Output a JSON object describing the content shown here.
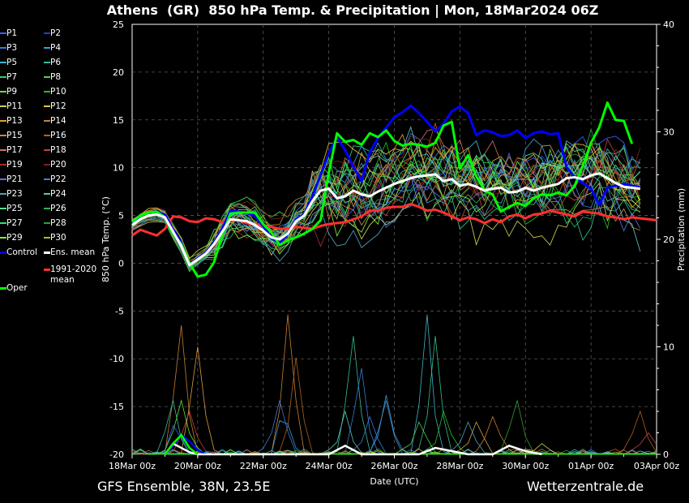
{
  "title": "Athens  (GR)  850 hPa Temp. & Precipitation | Mon, 18Mar2024 06Z",
  "footer": {
    "model": "GFS Ensemble, 38N, 23.5E",
    "source": "Wetterzentrale.de"
  },
  "legend": [
    {
      "label": "P1",
      "color": "#4060ff",
      "thick": false
    },
    {
      "label": "P2",
      "color": "#2040c0",
      "thick": false
    },
    {
      "label": "P3",
      "color": "#3c78d8",
      "thick": false
    },
    {
      "label": "P4",
      "color": "#3c9ad8",
      "thick": false
    },
    {
      "label": "P5",
      "color": "#40b4c8",
      "thick": false
    },
    {
      "label": "P6",
      "color": "#30c090",
      "thick": false
    },
    {
      "label": "P7",
      "color": "#30d070",
      "thick": false
    },
    {
      "label": "P8",
      "color": "#50d050",
      "thick": false
    },
    {
      "label": "P9",
      "color": "#60e040",
      "thick": false
    },
    {
      "label": "P10",
      "color": "#20c020",
      "thick": false
    },
    {
      "label": "P11",
      "color": "#d0d050",
      "thick": false
    },
    {
      "label": "P12",
      "color": "#e0c040",
      "thick": false
    },
    {
      "label": "P13",
      "color": "#d8a040",
      "thick": false
    },
    {
      "label": "P14",
      "color": "#c88030",
      "thick": false
    },
    {
      "label": "P15",
      "color": "#d08050",
      "thick": false
    },
    {
      "label": "P16",
      "color": "#b06020",
      "thick": false
    },
    {
      "label": "P17",
      "color": "#d07060",
      "thick": false
    },
    {
      "label": "P18",
      "color": "#c04040",
      "thick": false
    },
    {
      "label": "P19",
      "color": "#a03020",
      "thick": false
    },
    {
      "label": "P20",
      "color": "#802020",
      "thick": false
    },
    {
      "label": "P21",
      "color": "#6070e0",
      "thick": false
    },
    {
      "label": "P22",
      "color": "#4080c0",
      "thick": false
    },
    {
      "label": "P23",
      "color": "#50a0c0",
      "thick": false
    },
    {
      "label": "P24",
      "color": "#60c0c0",
      "thick": false
    },
    {
      "label": "P25",
      "color": "#50e090",
      "thick": false
    },
    {
      "label": "P26",
      "color": "#30b060",
      "thick": false
    },
    {
      "label": "P27",
      "color": "#40e060",
      "thick": false
    },
    {
      "label": "P28",
      "color": "#30a030",
      "thick": false
    },
    {
      "label": "P29",
      "color": "#80f040",
      "thick": false
    },
    {
      "label": "P30",
      "color": "#c0b030",
      "thick": false
    },
    {
      "label": "Control",
      "color": "#0000ff",
      "thick": true
    },
    {
      "label": "Ens. mean",
      "color": "#ffffff",
      "thick": true
    },
    {
      "label": "Oper",
      "color": "#00ff00",
      "thick": true
    },
    {
      "label": "1991-2020 mean",
      "color": "#ff3030",
      "thick": true
    }
  ],
  "chart_data": {
    "type": "line",
    "xlabel": "Date (UTC)",
    "ylabel": "850 hPa Temp. (°C)",
    "y2label": "Precipitation (mm)",
    "ylim": [
      -20,
      25
    ],
    "y2lim": [
      0,
      40
    ],
    "yticks": [
      "25",
      "20",
      "15",
      "10",
      "5",
      "0",
      "-5",
      "-10",
      "-15",
      "-20"
    ],
    "y2ticks": [
      "40",
      "30",
      "20",
      "10",
      "0"
    ],
    "x_ticklabels": [
      "18Mar 00z",
      "20Mar 00z",
      "22Mar 00z",
      "24Mar 00z",
      "26Mar 00z",
      "28Mar 00z",
      "30Mar 00z",
      "01Apr 00z",
      "03Apr 00z"
    ],
    "grid": true,
    "x_range_hours": [
      0,
      384
    ],
    "series": [
      {
        "name": "Control",
        "color": "#0000ff",
        "step_hours": 6,
        "values": [
          4.1,
          5.0,
          5.3,
          5.4,
          5.1,
          3.5,
          2.2,
          -0.2,
          0.5,
          1.1,
          2.2,
          3.6,
          5.5,
          5.4,
          5.3,
          4.9,
          3.9,
          2.6,
          2.1,
          3.1,
          4.6,
          5.1,
          7.0,
          9.2,
          11.5,
          13.2,
          11.8,
          10.1,
          8.6,
          11.6,
          13.1,
          14.2,
          15.3,
          15.8,
          16.5,
          15.7,
          14.8,
          13.8,
          14.6,
          15.9,
          16.4,
          15.7,
          13.4,
          13.9,
          13.7,
          13.3,
          13.4,
          13.9,
          13.1,
          13.6,
          13.8,
          13.5,
          13.6,
          10.1,
          9.0,
          8.4,
          7.8,
          6.1,
          7.9,
          8.1,
          8.3,
          8.1,
          7.9
        ]
      },
      {
        "name": "Ens. mean",
        "color": "#ffffff",
        "step_hours": 6,
        "values": [
          4.0,
          4.6,
          5.0,
          5.1,
          4.8,
          3.3,
          1.8,
          -0.2,
          0.4,
          1.0,
          2.0,
          3.3,
          4.6,
          4.5,
          4.4,
          4.0,
          3.4,
          2.7,
          2.5,
          3.1,
          4.4,
          5.0,
          6.5,
          7.6,
          7.8,
          6.8,
          7.0,
          7.6,
          7.2,
          7.0,
          7.5,
          7.9,
          8.3,
          8.6,
          8.9,
          9.1,
          9.2,
          9.3,
          8.6,
          8.8,
          8.1,
          8.3,
          8.0,
          7.6,
          7.8,
          7.9,
          7.4,
          7.5,
          7.9,
          7.6,
          7.9,
          8.1,
          8.3,
          8.9,
          9.0,
          8.8,
          9.2,
          9.4,
          8.9,
          8.4,
          8.0,
          7.9,
          7.8
        ]
      },
      {
        "name": "Oper",
        "color": "#00ff00",
        "step_hours": 6,
        "values": [
          4.3,
          5.0,
          5.3,
          5.4,
          4.8,
          3.1,
          2.0,
          0.0,
          -1.4,
          -1.2,
          0.1,
          2.9,
          5.2,
          5.3,
          5.3,
          5.3,
          4.1,
          3.2,
          1.9,
          2.4,
          2.7,
          3.1,
          3.6,
          4.5,
          9.5,
          13.6,
          12.7,
          12.9,
          12.4,
          13.6,
          13.2,
          13.9,
          12.8,
          12.3,
          12.5,
          12.4,
          12.2,
          12.6,
          14.4,
          14.8,
          9.9,
          11.3,
          9.1,
          7.6,
          7.2,
          5.4,
          5.9,
          6.3,
          6.0,
          6.8,
          7.2,
          7.1,
          7.4,
          7.1,
          8.1,
          10.2,
          12.6,
          14.2,
          16.8,
          15.0,
          14.9,
          12.5
        ]
      },
      {
        "name": "1991-2020 mean",
        "color": "#ff3030",
        "step_hours": 6,
        "values": [
          2.9,
          3.5,
          3.2,
          2.9,
          3.6,
          4.9,
          4.8,
          4.4,
          4.3,
          4.7,
          4.6,
          4.3,
          4.5,
          4.5,
          4.2,
          4.0,
          3.9,
          3.8,
          3.6,
          3.6,
          3.8,
          3.7,
          3.6,
          3.9,
          4.1,
          4.2,
          4.3,
          4.6,
          4.9,
          5.5,
          5.5,
          5.8,
          5.9,
          5.9,
          6.2,
          5.9,
          5.5,
          5.6,
          5.3,
          4.9,
          4.5,
          4.8,
          4.6,
          4.2,
          4.6,
          4.3,
          4.9,
          5.1,
          4.7,
          5.1,
          5.2,
          5.5,
          5.3,
          5.1,
          4.9,
          5.4,
          5.3,
          5.2,
          4.9,
          4.8,
          4.6,
          4.8,
          4.7,
          4.6,
          4.5
        ]
      }
    ],
    "precip_highlights": [
      {
        "name": "Control",
        "color": "#0000ff",
        "points": [
          [
            24,
            0
          ],
          [
            30,
            0.8
          ],
          [
            36,
            1.8
          ],
          [
            42,
            1.2
          ],
          [
            48,
            0.4
          ],
          [
            54,
            0
          ]
        ]
      },
      {
        "name": "Ens. mean",
        "color": "#ffffff",
        "points": [
          [
            24,
            0
          ],
          [
            30,
            1.0
          ],
          [
            36,
            0.6
          ],
          [
            42,
            0.2
          ],
          [
            48,
            0
          ],
          [
            144,
            0
          ],
          [
            156,
            0.8
          ],
          [
            168,
            0
          ],
          [
            210,
            0
          ],
          [
            222,
            0.6
          ],
          [
            234,
            0.3
          ],
          [
            246,
            0
          ],
          [
            264,
            0
          ],
          [
            276,
            0.8
          ],
          [
            288,
            0.3
          ],
          [
            300,
            0
          ]
        ]
      },
      {
        "name": "Oper",
        "color": "#00ff00",
        "points": [
          [
            24,
            0
          ],
          [
            30,
            1.0
          ],
          [
            36,
            1.8
          ],
          [
            42,
            0.6
          ],
          [
            48,
            0
          ]
        ]
      }
    ]
  }
}
